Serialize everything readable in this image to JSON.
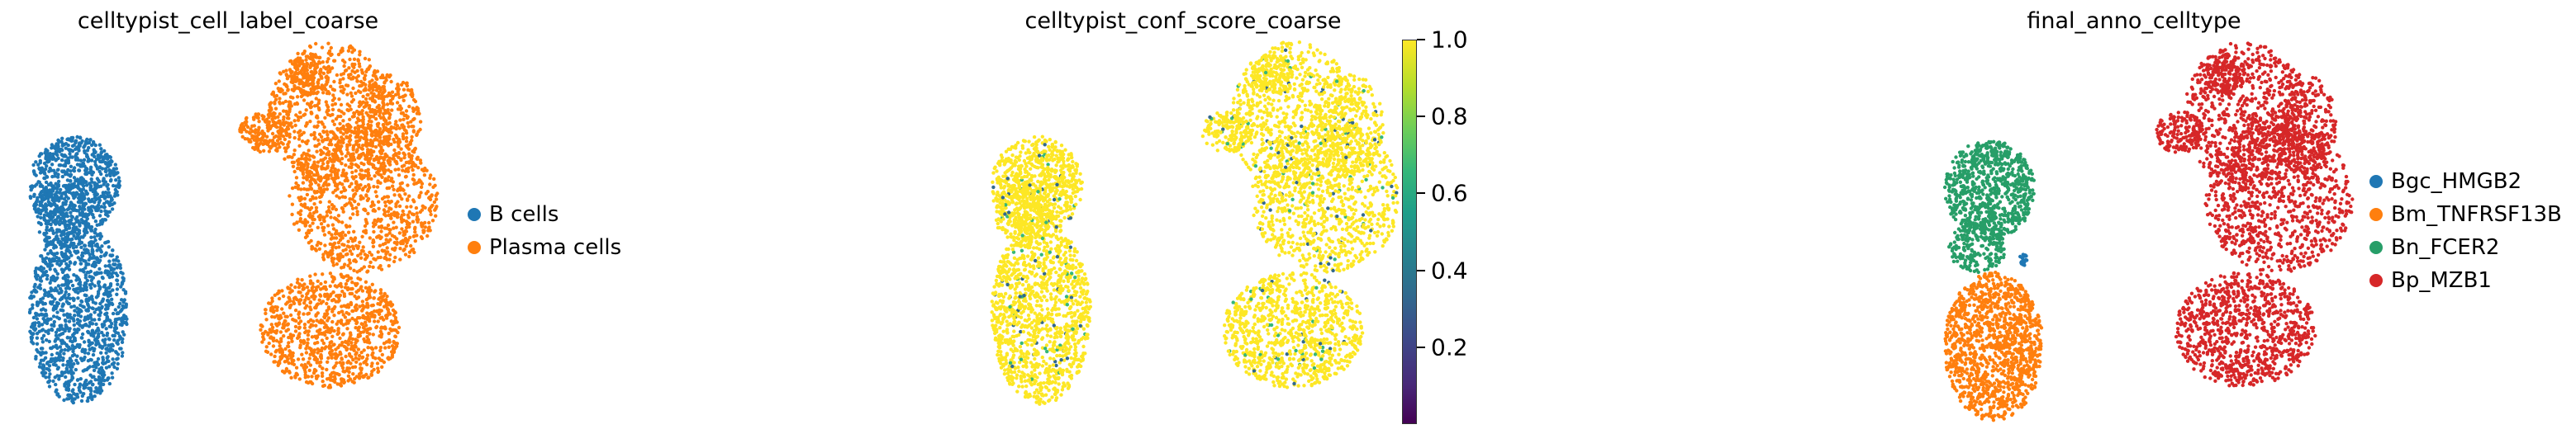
{
  "chart_data": [
    {
      "type": "scatter",
      "title": "celltypist_cell_label_coarse",
      "legend": {
        "placement": "right",
        "entries": [
          {
            "label": "B cells",
            "color": "#1f77b4"
          },
          {
            "label": "Plasma cells",
            "color": "#ff7f0e"
          }
        ]
      }
    },
    {
      "type": "scatter",
      "title": "celltypist_conf_score_coarse",
      "colorbar": {
        "colormap": "viridis",
        "range": [
          0.0,
          1.0
        ],
        "ticks": [
          "0.2",
          "0.4",
          "0.6",
          "0.8",
          "1.0"
        ],
        "tick_values": [
          0.2,
          0.4,
          0.6,
          0.8,
          1.0
        ]
      }
    },
    {
      "type": "scatter",
      "title": "final_anno_celltype",
      "legend": {
        "placement": "right",
        "entries": [
          {
            "label": "Bgc_HMGB2",
            "color": "#1f77b4"
          },
          {
            "label": "Bm_TNFRSF13B",
            "color": "#ff7f0e"
          },
          {
            "label": "Bn_FCER2",
            "color": "#279e68"
          },
          {
            "label": "Bp_MZB1",
            "color": "#d62728"
          }
        ]
      }
    }
  ]
}
